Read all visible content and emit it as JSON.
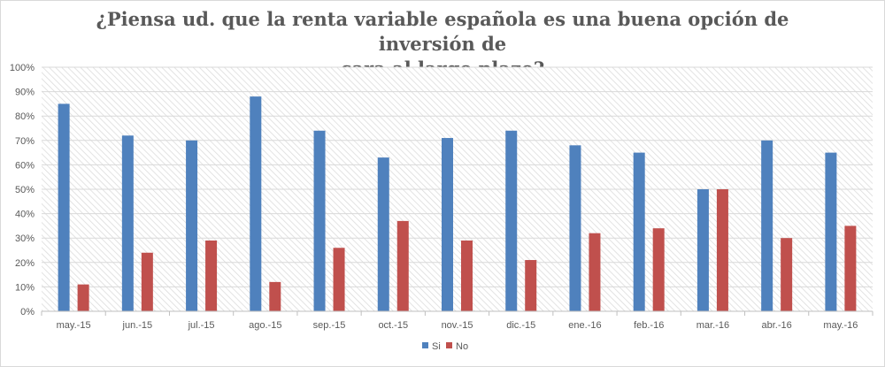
{
  "chart_data": {
    "type": "bar",
    "title_lines": [
      "¿Piensa ud. que la renta variable española es una buena opción de inversión de",
      "cara al largo plazo?"
    ],
    "categories": [
      "may.-15",
      "jun.-15",
      "jul.-15",
      "ago.-15",
      "sep.-15",
      "oct.-15",
      "nov.-15",
      "dic.-15",
      "ene.-16",
      "feb.-16",
      "mar.-16",
      "abr.-16",
      "may.-16"
    ],
    "series": [
      {
        "name": "Si",
        "color": "#4f81bd",
        "values": [
          85,
          72,
          70,
          88,
          74,
          63,
          71,
          74,
          68,
          65,
          50,
          70,
          65
        ]
      },
      {
        "name": "No",
        "color": "#c0504d",
        "values": [
          11,
          24,
          29,
          12,
          26,
          37,
          29,
          21,
          32,
          34,
          50,
          30,
          35
        ]
      }
    ],
    "ylim": [
      0,
      100
    ],
    "yticks": [
      "0%",
      "10%",
      "20%",
      "30%",
      "40%",
      "50%",
      "60%",
      "70%",
      "80%",
      "90%",
      "100%"
    ],
    "xlabel": "",
    "ylabel": "",
    "legend": "bottom-center",
    "grid": true
  }
}
